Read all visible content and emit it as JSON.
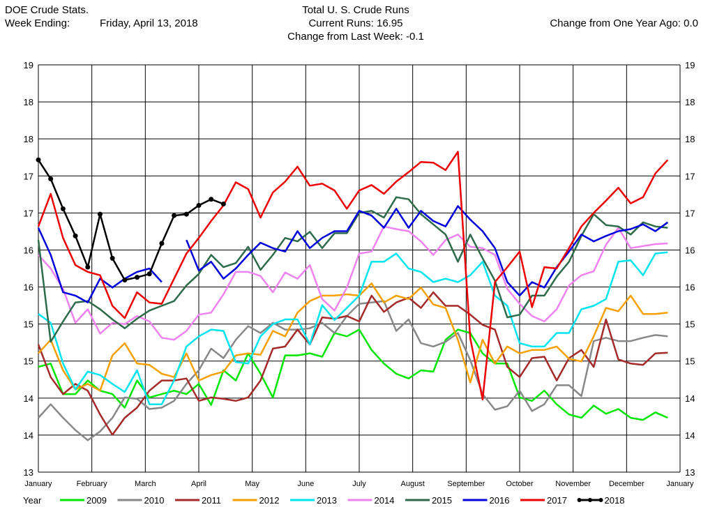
{
  "header": {
    "line1": "DOE Crude Stats.",
    "week_label": "Week Ending:",
    "week_value": "Friday, April 13, 2018",
    "title": "Total U. S. Crude Runs",
    "current_runs": "Current Runs: 16.95",
    "change_week": "Change from Last Week:  -0.1",
    "change_year": "Change from One Year Ago:   0.0"
  },
  "chart_data": {
    "type": "line",
    "title": "Total U. S. Crude Runs",
    "xlabel": "",
    "ylabel": "",
    "x_range": [
      0,
      52
    ],
    "ylim": [
      13,
      19
    ],
    "y_tick_labels": [
      "13",
      "14",
      "14",
      "15",
      "15",
      "16",
      "16",
      "17",
      "17",
      "18",
      "18",
      "19"
    ],
    "month_labels": [
      "January",
      "February",
      "March",
      "April",
      "May",
      "June",
      "July",
      "August",
      "September",
      "October",
      "November",
      "December",
      "January"
    ],
    "legend_title": "Year",
    "legend_position": "bottom",
    "grid": true,
    "series": [
      {
        "name": "2009",
        "color": "#00e600",
        "x": [
          0,
          1,
          2,
          3,
          4,
          5,
          6,
          7,
          8,
          9,
          10,
          11,
          12,
          13,
          14,
          15,
          16,
          17,
          18,
          19,
          20,
          21,
          22,
          23,
          24,
          25,
          26,
          27,
          28,
          29,
          30,
          31,
          32,
          33,
          34,
          35,
          36,
          37,
          38,
          39,
          40,
          41,
          42,
          43,
          44,
          45,
          46,
          47,
          48,
          49,
          50,
          51
        ],
        "values": [
          14.55,
          14.6,
          14.15,
          14.15,
          14.35,
          14.2,
          14.15,
          13.95,
          14.35,
          14.1,
          14.15,
          14.2,
          14.15,
          14.3,
          13.99,
          14.5,
          14.35,
          14.75,
          14.45,
          14.1,
          14.72,
          14.72,
          14.75,
          14.7,
          15.05,
          15.0,
          15.1,
          14.8,
          14.6,
          14.45,
          14.38,
          14.5,
          14.48,
          14.95,
          15.1,
          15.05,
          14.75,
          14.6,
          14.6,
          14.1,
          14.05,
          14.2,
          14.0,
          13.85,
          13.8,
          13.98,
          13.86,
          13.93,
          13.8,
          13.77,
          13.88,
          13.8
        ]
      },
      {
        "name": "2010",
        "color": "#888888",
        "x": [
          0,
          1,
          2,
          3,
          4,
          5,
          6,
          7,
          8,
          9,
          10,
          11,
          12,
          13,
          14,
          15,
          16,
          17,
          18,
          19,
          20,
          21,
          22,
          23,
          24,
          25,
          26,
          27,
          28,
          29,
          30,
          31,
          32,
          33,
          34,
          35,
          36,
          37,
          38,
          39,
          40,
          41,
          42,
          43,
          44,
          45,
          46,
          47,
          48,
          49,
          50,
          51
        ],
        "values": [
          13.8,
          14.0,
          13.8,
          13.62,
          13.47,
          13.6,
          13.8,
          14.1,
          14.08,
          13.93,
          13.95,
          14.05,
          14.3,
          14.5,
          14.82,
          14.68,
          14.95,
          15.15,
          15.05,
          15.2,
          15.1,
          15.1,
          15.12,
          15.2,
          15.05,
          15.3,
          15.48,
          15.5,
          15.52,
          15.08,
          15.25,
          14.9,
          14.85,
          14.92,
          15.05,
          14.65,
          14.15,
          13.92,
          13.97,
          14.2,
          13.9,
          14.0,
          14.28,
          14.28,
          14.12,
          14.93,
          14.98,
          14.93,
          14.93,
          14.98,
          15.02,
          15.0
        ]
      },
      {
        "name": "2011",
        "color": "#a52a2a",
        "x": [
          0,
          1,
          2,
          3,
          4,
          5,
          6,
          7,
          8,
          9,
          10,
          11,
          12,
          13,
          14,
          15,
          16,
          17,
          18,
          19,
          20,
          21,
          22,
          23,
          24,
          25,
          26,
          27,
          28,
          29,
          30,
          31,
          32,
          33,
          34,
          35,
          36,
          37,
          38,
          39,
          40,
          41,
          42,
          43,
          44,
          45,
          46,
          47,
          48,
          49,
          50,
          51
        ],
        "values": [
          14.88,
          14.4,
          14.15,
          14.3,
          14.2,
          13.85,
          13.55,
          13.8,
          13.95,
          14.2,
          14.35,
          14.35,
          14.38,
          14.05,
          14.1,
          14.08,
          14.05,
          14.1,
          14.35,
          14.82,
          14.85,
          15.1,
          14.88,
          15.28,
          15.26,
          15.3,
          15.22,
          15.6,
          15.36,
          15.5,
          15.57,
          15.42,
          15.65,
          15.45,
          15.45,
          15.32,
          15.17,
          15.1,
          14.55,
          14.4,
          14.68,
          14.7,
          14.35,
          14.68,
          14.8,
          14.55,
          15.25,
          14.66,
          14.6,
          14.58,
          14.75,
          14.76
        ]
      },
      {
        "name": "2012",
        "color": "#f5a000",
        "x": [
          0,
          1,
          2,
          3,
          4,
          5,
          6,
          7,
          8,
          9,
          10,
          11,
          12,
          13,
          14,
          15,
          16,
          17,
          18,
          19,
          20,
          21,
          22,
          23,
          24,
          25,
          26,
          27,
          28,
          29,
          30,
          31,
          32,
          33,
          34,
          35,
          36,
          37,
          38,
          39,
          40,
          41,
          42,
          43,
          44,
          45,
          46,
          47,
          48,
          49,
          50,
          51
        ],
        "values": [
          14.75,
          14.95,
          14.5,
          14.22,
          14.3,
          14.2,
          14.72,
          14.9,
          14.6,
          14.58,
          14.45,
          14.4,
          14.75,
          14.35,
          14.43,
          14.48,
          14.72,
          14.75,
          14.73,
          15.08,
          15.0,
          15.35,
          15.52,
          15.6,
          15.6,
          15.62,
          15.6,
          15.78,
          15.5,
          15.6,
          15.55,
          15.72,
          15.47,
          15.42,
          14.95,
          14.32,
          14.95,
          14.6,
          14.85,
          14.75,
          14.8,
          14.8,
          14.85,
          14.67,
          14.63,
          15.0,
          15.42,
          15.37,
          15.6,
          15.33,
          15.33,
          15.35
        ]
      },
      {
        "name": "2013",
        "color": "#00e5ee",
        "x": [
          0,
          1,
          2,
          3,
          4,
          5,
          6,
          7,
          8,
          9,
          10,
          11,
          12,
          13,
          14,
          15,
          16,
          17,
          18,
          19,
          20,
          21,
          22,
          23,
          24,
          25,
          26,
          27,
          28,
          29,
          30,
          31,
          32,
          33,
          34,
          35,
          36,
          37,
          38,
          39,
          40,
          41,
          42,
          43,
          44,
          45,
          46,
          47,
          48,
          49,
          50,
          51
        ],
        "values": [
          15.33,
          15.2,
          14.6,
          14.22,
          14.48,
          14.43,
          14.3,
          14.18,
          14.5,
          14.0,
          14.0,
          14.35,
          14.85,
          15.0,
          15.1,
          15.08,
          14.62,
          14.6,
          15.0,
          15.18,
          15.25,
          15.25,
          14.88,
          15.46,
          15.24,
          15.42,
          15.6,
          16.1,
          16.1,
          16.22,
          16.0,
          15.95,
          15.8,
          15.85,
          15.8,
          15.9,
          16.1,
          15.6,
          15.45,
          14.9,
          14.85,
          14.85,
          15.05,
          15.05,
          15.4,
          15.45,
          15.55,
          16.1,
          16.12,
          15.9,
          16.22,
          16.24
        ]
      },
      {
        "name": "2014",
        "color": "#ee82ee",
        "x": [
          0,
          1,
          2,
          3,
          4,
          5,
          6,
          7,
          8,
          9,
          10,
          11,
          12,
          13,
          14,
          15,
          16,
          17,
          18,
          19,
          20,
          21,
          22,
          23,
          24,
          25,
          26,
          27,
          28,
          29,
          30,
          31,
          32,
          33,
          34,
          35,
          36,
          37,
          38,
          39,
          40,
          41,
          42,
          43,
          44,
          45,
          46,
          47,
          48,
          49,
          50,
          51
        ],
        "values": [
          16.2,
          16.0,
          15.7,
          15.2,
          15.4,
          15.04,
          15.2,
          15.18,
          15.3,
          15.22,
          14.98,
          14.95,
          15.08,
          15.32,
          15.35,
          15.62,
          15.95,
          15.95,
          15.89,
          15.65,
          15.94,
          15.85,
          16.05,
          15.55,
          15.38,
          15.72,
          16.22,
          16.25,
          16.62,
          16.58,
          16.55,
          16.4,
          16.2,
          16.42,
          16.5,
          16.32,
          16.3,
          16.2,
          15.7,
          15.48,
          15.3,
          15.22,
          15.4,
          15.75,
          15.9,
          15.96,
          16.35,
          16.6,
          16.3,
          16.33,
          16.36,
          16.37
        ]
      },
      {
        "name": "2015",
        "color": "#2e6b4b",
        "x": [
          0,
          1,
          2,
          3,
          4,
          5,
          6,
          7,
          8,
          9,
          10,
          11,
          12,
          13,
          14,
          15,
          16,
          17,
          18,
          19,
          20,
          21,
          22,
          23,
          24,
          25,
          26,
          27,
          28,
          29,
          30,
          31,
          32,
          33,
          34,
          35,
          36,
          37,
          38,
          39,
          40,
          41,
          42,
          43,
          44,
          45,
          46,
          47,
          48,
          49,
          50,
          51
        ],
        "values": [
          16.42,
          14.92,
          15.22,
          15.5,
          15.52,
          15.4,
          15.25,
          15.12,
          15.26,
          15.38,
          15.45,
          15.52,
          15.75,
          15.92,
          16.2,
          16.02,
          16.08,
          16.32,
          15.98,
          16.2,
          16.45,
          16.4,
          16.54,
          16.3,
          16.52,
          16.52,
          16.82,
          16.85,
          16.75,
          17.05,
          17.02,
          16.8,
          16.65,
          16.5,
          16.1,
          16.5,
          16.15,
          15.82,
          15.28,
          15.32,
          15.6,
          15.6,
          15.88,
          16.1,
          16.48,
          16.8,
          16.64,
          16.62,
          16.5,
          16.68,
          16.62,
          16.6
        ]
      },
      {
        "name": "2016",
        "color": "#0000dd",
        "x": [
          0,
          1,
          2,
          3,
          4,
          5,
          6,
          7,
          8,
          9,
          10,
          11,
          12,
          13,
          14,
          15,
          16,
          17,
          18,
          19,
          20,
          21,
          22,
          23,
          24,
          25,
          26,
          27,
          28,
          29,
          30,
          31,
          32,
          33,
          34,
          35,
          36,
          37,
          38,
          39,
          40,
          41,
          42,
          43,
          44,
          45,
          46,
          47,
          48,
          49,
          50,
          51
        ],
        "values": [
          16.6,
          16.2,
          15.65,
          15.6,
          15.5,
          15.85,
          15.72,
          15.85,
          15.95,
          16.0,
          15.8,
          null,
          16.42,
          15.97,
          16.1,
          15.85,
          16.0,
          16.2,
          16.38,
          16.3,
          16.25,
          16.55,
          16.3,
          16.45,
          16.55,
          16.55,
          16.85,
          16.78,
          16.6,
          16.88,
          16.6,
          16.85,
          16.7,
          16.62,
          16.92,
          16.72,
          16.55,
          16.3,
          15.8,
          15.6,
          15.8,
          15.72,
          16.02,
          16.25,
          16.5,
          16.4,
          16.48,
          16.55,
          16.58,
          16.65,
          16.55,
          16.68
        ]
      },
      {
        "name": "2017",
        "color": "#ee0000",
        "x": [
          0,
          1,
          2,
          3,
          4,
          5,
          6,
          7,
          8,
          9,
          10,
          11,
          12,
          13,
          14,
          15,
          16,
          17,
          18,
          19,
          20,
          21,
          22,
          23,
          24,
          25,
          26,
          27,
          28,
          29,
          30,
          31,
          32,
          33,
          34,
          35,
          36,
          37,
          38,
          39,
          40,
          41,
          42,
          43,
          44,
          45,
          46,
          47,
          48,
          49,
          50,
          51
        ],
        "values": [
          16.62,
          17.1,
          16.45,
          16.05,
          15.95,
          15.9,
          15.45,
          15.27,
          15.65,
          15.5,
          15.48,
          15.85,
          16.22,
          16.45,
          16.7,
          16.93,
          17.27,
          17.17,
          16.75,
          17.12,
          17.28,
          17.5,
          17.22,
          17.25,
          17.15,
          16.88,
          17.15,
          17.23,
          17.1,
          17.28,
          17.42,
          17.57,
          17.56,
          17.45,
          17.72,
          14.97,
          14.07,
          15.8,
          16.02,
          16.25,
          15.43,
          16.02,
          16.0,
          16.3,
          16.62,
          16.82,
          17.0,
          17.19,
          16.96,
          17.05,
          17.4,
          17.6
        ]
      },
      {
        "name": "2018",
        "color": "#000000",
        "x": [
          0,
          1,
          2,
          3,
          4,
          5,
          6,
          7,
          8,
          9,
          10,
          11,
          12,
          13,
          14,
          15
        ],
        "values": [
          17.6,
          17.32,
          16.88,
          16.48,
          16.02,
          16.8,
          16.15,
          15.83,
          15.87,
          15.92,
          16.37,
          16.78,
          16.8,
          16.93,
          17.02,
          16.95
        ]
      }
    ]
  }
}
